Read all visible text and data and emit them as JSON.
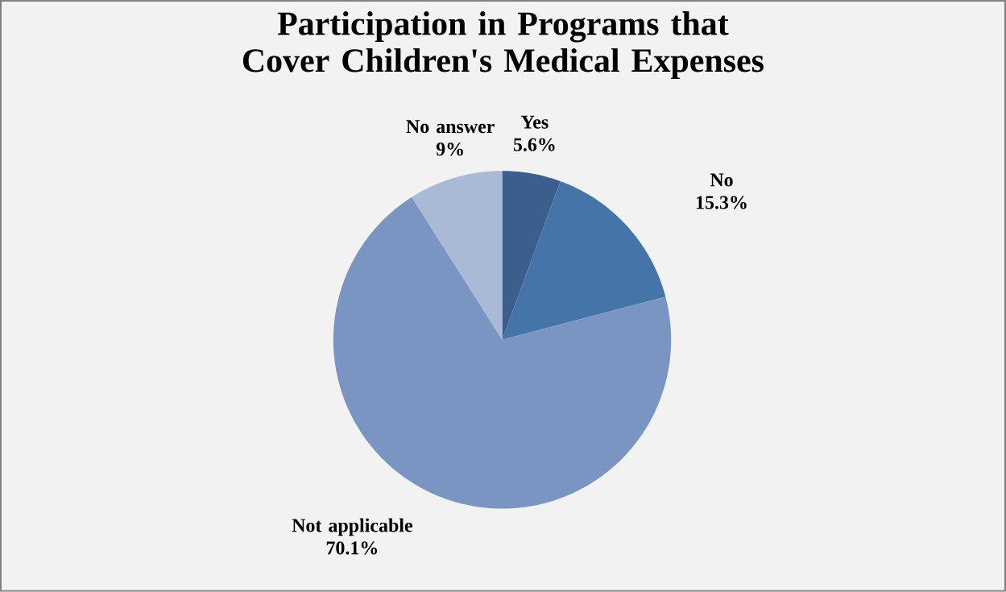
{
  "chart_data": {
    "type": "pie",
    "title": "Participation in Programs that Cover Children's Medical Expenses",
    "categories": [
      "Yes",
      "No",
      "Not applicable",
      "No answer"
    ],
    "values": [
      5.6,
      15.3,
      70.1,
      9
    ],
    "value_labels": [
      "5.6%",
      "15.3%",
      "70.1%",
      "9%"
    ],
    "colors": [
      "#3b5e8c",
      "#4574a9",
      "#7a95c2",
      "#aab9d6"
    ]
  }
}
